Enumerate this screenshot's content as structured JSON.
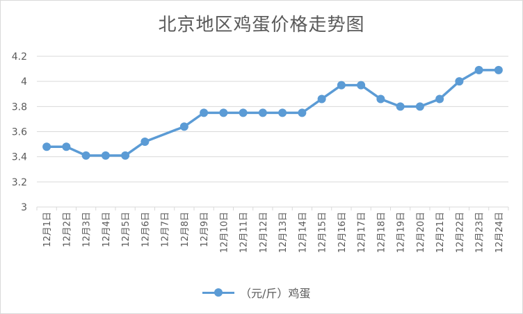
{
  "chart_data": {
    "type": "line",
    "title": "北京地区鸡蛋价格走势图",
    "xlabel": "",
    "ylabel": "",
    "categories": [
      "12月1日",
      "12月2日",
      "12月3日",
      "12月4日",
      "12月5日",
      "12月6日",
      "12月7日",
      "12月8日",
      "12月9日",
      "12月10日",
      "12月11日",
      "12月12日",
      "12月13日",
      "12月14日",
      "12月15日",
      "12月16日",
      "12月17日",
      "12月18日",
      "12月19日",
      "12月20日",
      "12月21日",
      "12月22日",
      "12月23日",
      "12月24日"
    ],
    "series": [
      {
        "name": "（元/斤）鸡蛋",
        "values": [
          3.48,
          3.48,
          3.41,
          3.41,
          3.41,
          3.52,
          null,
          3.64,
          3.75,
          3.75,
          3.75,
          3.75,
          3.75,
          3.75,
          3.86,
          3.97,
          3.97,
          3.86,
          3.8,
          3.8,
          3.86,
          4.0,
          4.09,
          4.09
        ]
      }
    ],
    "ylim": [
      3,
      4.2
    ],
    "yticks": [
      3,
      3.2,
      3.4,
      3.6,
      3.8,
      4,
      4.2
    ],
    "ytick_labels": [
      "3",
      "3.2",
      "3.4",
      "3.6",
      "3.8",
      "4",
      "4.2"
    ],
    "grid": true,
    "legend_position": "bottom",
    "color": "#5b9bd5",
    "gridline_color": "#d9d9d9"
  }
}
